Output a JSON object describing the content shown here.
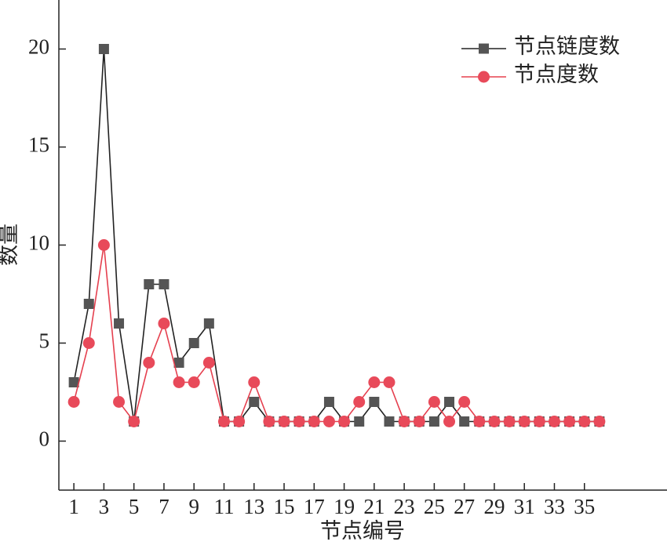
{
  "chart_data": {
    "type": "line",
    "x_label": "节点编号",
    "y_label": "数量",
    "x": [
      1,
      2,
      3,
      4,
      5,
      6,
      7,
      8,
      9,
      10,
      11,
      12,
      13,
      14,
      15,
      16,
      17,
      18,
      19,
      20,
      21,
      22,
      23,
      24,
      25,
      26,
      27,
      28,
      29,
      30,
      31,
      32,
      33,
      34,
      35,
      36
    ],
    "series": [
      {
        "name": "节点链度数",
        "color": "#222222",
        "marker_color": "#555555",
        "marker": "square",
        "values": [
          3,
          7,
          20,
          6,
          1,
          8,
          8,
          4,
          5,
          6,
          1,
          1,
          2,
          1,
          1,
          1,
          1,
          2,
          1,
          1,
          2,
          1,
          1,
          1,
          1,
          2,
          1,
          1,
          1,
          1,
          1,
          1,
          1,
          1,
          1,
          1
        ]
      },
      {
        "name": "节点度数",
        "color": "#e5404f",
        "marker_color": "#e84a5a",
        "marker": "circle",
        "values": [
          2,
          5,
          10,
          2,
          1,
          4,
          6,
          3,
          3,
          4,
          1,
          1,
          3,
          1,
          1,
          1,
          1,
          1,
          1,
          2,
          3,
          3,
          1,
          1,
          2,
          1,
          2,
          1,
          1,
          1,
          1,
          1,
          1,
          1,
          1,
          1
        ]
      }
    ],
    "xlim": [
      0,
      40.5
    ],
    "ylim": [
      -2.5,
      22.5
    ],
    "xticks": [
      1,
      3,
      5,
      7,
      9,
      11,
      13,
      15,
      17,
      19,
      21,
      23,
      25,
      27,
      29,
      31,
      33,
      35
    ],
    "yticks": [
      0,
      5,
      10,
      15,
      20
    ],
    "legend": "upper right"
  }
}
